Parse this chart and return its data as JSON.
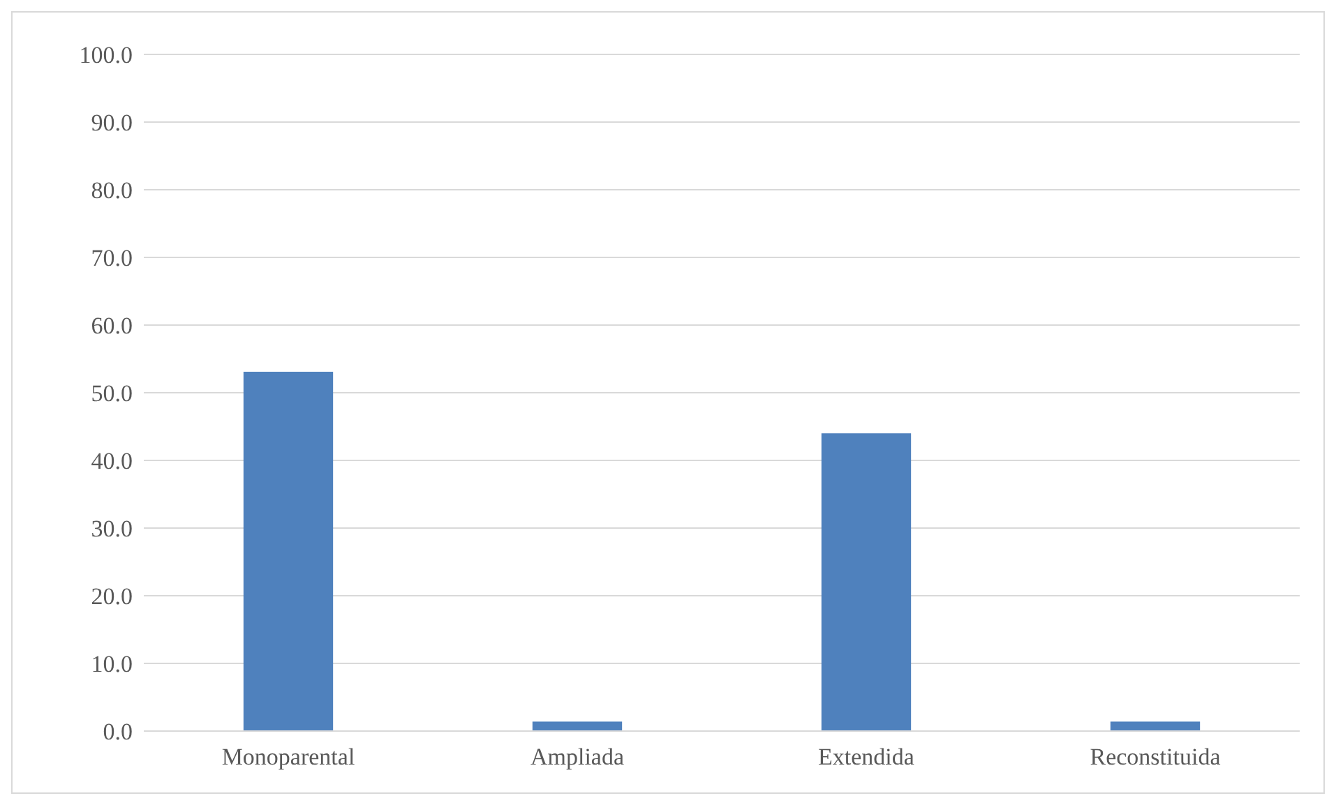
{
  "chart_data": {
    "type": "bar",
    "categories": [
      "Monoparental",
      "Ampliada",
      "Extendida",
      "Reconstituida"
    ],
    "values": [
      53.1,
      1.4,
      44.0,
      1.4
    ],
    "color": "#4f81bd",
    "ylim": [
      0,
      100
    ],
    "yticks": [
      {
        "value": 0,
        "label": "0.0"
      },
      {
        "value": 10,
        "label": "10.0"
      },
      {
        "value": 20,
        "label": "20.0"
      },
      {
        "value": 30,
        "label": "30.0"
      },
      {
        "value": 40,
        "label": "40.0"
      },
      {
        "value": 50,
        "label": "50.0"
      },
      {
        "value": 60,
        "label": "60.0"
      },
      {
        "value": 70,
        "label": "70.0"
      },
      {
        "value": 80,
        "label": "80.0"
      },
      {
        "value": 90,
        "label": "90.0"
      },
      {
        "value": 100,
        "label": "100.0"
      }
    ],
    "grid": "y"
  }
}
